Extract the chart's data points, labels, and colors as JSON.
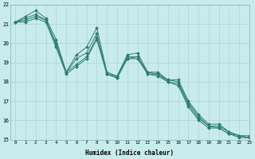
{
  "xlabel": "Humidex (Indice chaleur)",
  "bg_color": "#c8ecec",
  "line_color": "#2e7d6e",
  "grid_color": "#b0d4d4",
  "lines": [
    [
      21.1,
      21.4,
      21.7,
      21.3,
      20.2,
      18.5,
      19.4,
      19.8,
      20.8,
      18.5,
      18.3,
      19.4,
      19.5,
      18.5,
      18.5,
      18.1,
      18.1,
      17.0,
      16.3,
      15.8,
      15.8,
      15.4,
      15.2,
      15.2
    ],
    [
      21.1,
      21.3,
      21.5,
      21.2,
      20.0,
      18.5,
      19.2,
      19.5,
      20.5,
      18.4,
      18.3,
      19.3,
      19.3,
      18.5,
      18.4,
      18.1,
      18.0,
      16.9,
      16.2,
      15.7,
      15.7,
      15.4,
      15.2,
      15.1
    ],
    [
      21.1,
      21.2,
      21.4,
      21.2,
      19.9,
      18.5,
      18.9,
      19.3,
      20.3,
      18.4,
      18.2,
      19.2,
      19.3,
      18.4,
      18.4,
      18.0,
      17.9,
      16.8,
      16.1,
      15.7,
      15.6,
      15.3,
      15.2,
      15.1
    ],
    [
      21.1,
      21.1,
      21.3,
      21.1,
      19.8,
      18.4,
      18.8,
      19.2,
      20.2,
      18.4,
      18.2,
      19.2,
      19.2,
      18.4,
      18.3,
      18.0,
      17.8,
      16.7,
      16.0,
      15.6,
      15.6,
      15.3,
      15.1,
      15.1
    ]
  ],
  "xlim": [
    -0.5,
    23
  ],
  "ylim": [
    15,
    22
  ],
  "xticks": [
    0,
    1,
    2,
    3,
    4,
    5,
    6,
    7,
    8,
    9,
    10,
    11,
    12,
    13,
    14,
    15,
    16,
    17,
    18,
    19,
    20,
    21,
    22,
    23
  ],
  "yticks": [
    15,
    16,
    17,
    18,
    19,
    20,
    21,
    22
  ]
}
